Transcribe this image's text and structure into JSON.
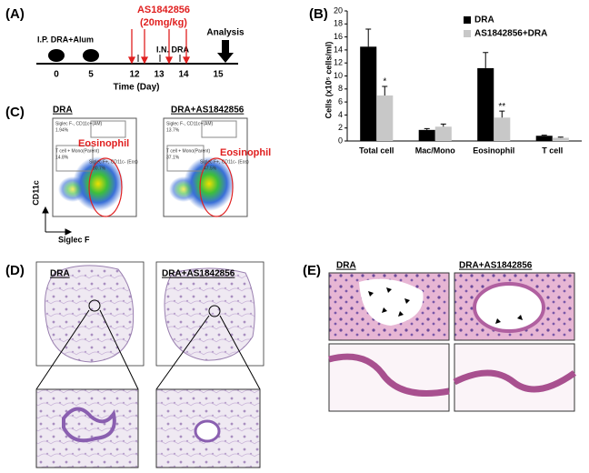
{
  "panel_a": {
    "label": "(A)",
    "drug": "AS1842856",
    "dose": "(20mg/kg)",
    "sensitization": "I.P. DRA+Alum",
    "challenge": "I.N. DRA",
    "analysis": "Analysis",
    "days": [
      "0",
      "5",
      "12",
      "13",
      "14",
      "15"
    ],
    "axis_label": "Time (Day)"
  },
  "panel_b": {
    "label": "(B)"
  },
  "chart_data": {
    "type": "bar",
    "ylabel": "Cells (x10⁵ cells/ml)",
    "categories": [
      "Total cell",
      "Mac/Mono",
      "Eosinophil",
      "T cell"
    ],
    "series": [
      {
        "name": "DRA",
        "color": "#000000",
        "values": [
          14.5,
          1.7,
          11.2,
          0.8
        ],
        "errors": [
          2.7,
          0.2,
          2.4,
          0.1
        ]
      },
      {
        "name": "AS1842856+DRA",
        "color": "#c8c8c8",
        "values": [
          7.0,
          2.2,
          3.6,
          0.5
        ],
        "errors": [
          1.4,
          0.4,
          1.0,
          0.1
        ],
        "significance": [
          "*",
          null,
          "**",
          null
        ]
      }
    ],
    "ylim": [
      0,
      20
    ],
    "yticks": [
      0,
      2,
      4,
      6,
      8,
      10,
      12,
      14,
      16,
      18,
      20
    ],
    "legend": "top-right"
  },
  "panel_c": {
    "label": "(C)",
    "plots": [
      {
        "title": "DRA",
        "gate_am": "Siglec F-, CD11c+(AM)",
        "pct_am": "1.94%",
        "gate_t": "T cell + Mono(Parent)",
        "pct_t": "14.8%",
        "gate_eos": "Siglec F+, CD11c- (Eos)",
        "pct_eos": "80.7%",
        "population": "Eosinophil"
      },
      {
        "title": "DRA+AS1842856",
        "gate_am": "Siglec F-, CD11c+(AM)",
        "pct_am": "13.7%",
        "gate_t": "T cell + Mono(Parent)",
        "pct_t": "37.1%",
        "gate_eos": "Siglec F+, CD11c- (Eos)",
        "pct_eos": "47.5%",
        "population": "Eosinophil"
      }
    ],
    "y_axis": "CD11c",
    "x_axis": "Siglec F"
  },
  "panel_d": {
    "label": "(D)",
    "titles": [
      "DRA",
      "DRA+AS1842856"
    ]
  },
  "panel_e": {
    "label": "(E)",
    "titles": [
      "DRA",
      "DRA+AS1842856"
    ]
  }
}
